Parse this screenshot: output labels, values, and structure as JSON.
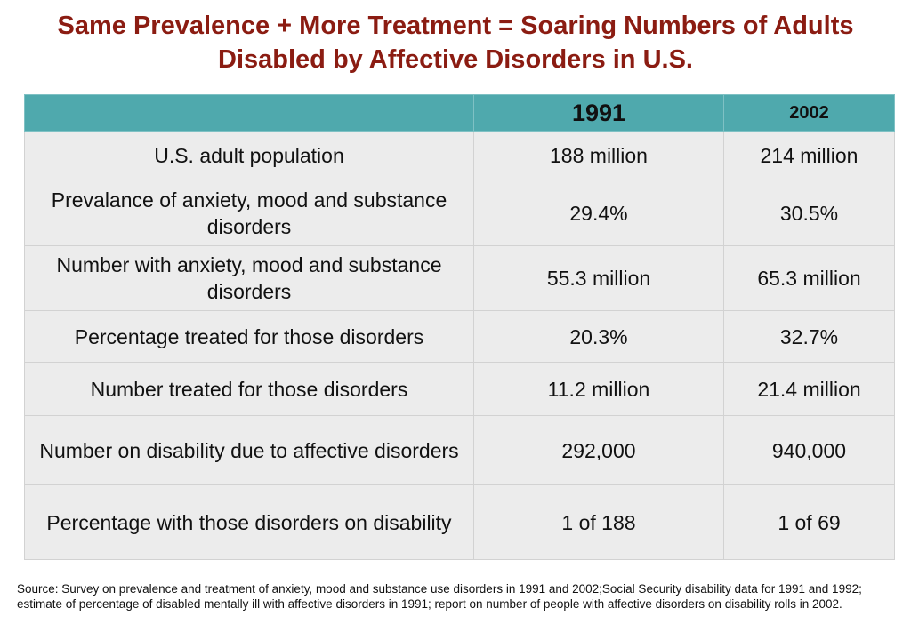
{
  "title": {
    "line1": "Same Prevalence + More Treatment = Soaring Numbers of Adults",
    "line2": "Disabled by Affective Disorders in U.S."
  },
  "table": {
    "columns": [
      "",
      "1991",
      "2002"
    ],
    "rows": [
      {
        "label": "U.S. adult population",
        "v1991": "188 million",
        "v2002": "214 million"
      },
      {
        "label": "Prevalance of anxiety, mood and substance disorders",
        "v1991": "29.4%",
        "v2002": "30.5%"
      },
      {
        "label": "Number with anxiety, mood and substance disorders",
        "v1991": "55.3 million",
        "v2002": "65.3 million"
      },
      {
        "label": "Percentage treated for those disorders",
        "v1991": "20.3%",
        "v2002": "32.7%"
      },
      {
        "label": "Number treated for those disorders",
        "v1991": "11.2 million",
        "v2002": "21.4 million"
      },
      {
        "label": "Number on disability due to affective disorders",
        "v1991": "292,000",
        "v2002": "940,000"
      },
      {
        "label": "Percentage with those disorders on disability",
        "v1991": "1 of 188",
        "v2002": "1 of 69"
      }
    ]
  },
  "source": "Source: Survey on prevalence and treatment of anxiety, mood and substance use disorders in 1991 and 2002;Social Security disability data for 1991 and 1992; estimate of percentage of disabled mentally ill with affective disorders in 1991; report on number of people with affective disorders on disability rolls in 2002.",
  "colors": {
    "title": "#8b1c12",
    "header_bg": "#4fa9ad",
    "row_bg": "#ececec"
  }
}
